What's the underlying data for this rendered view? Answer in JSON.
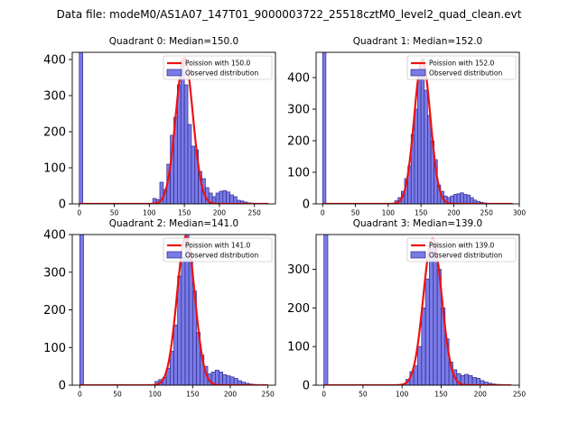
{
  "suptitle": "Data file: modeM0/AS1A07_147T01_9000003722_25518cztM0_level2_quad_clean.evt",
  "colors": {
    "bar_fill": "#7b7be8",
    "bar_edge": "#2a2a8c",
    "fit_line": "#ee1111",
    "axis": "#000000"
  },
  "chart_data": [
    {
      "type": "bar",
      "title": "Quadrant 0: Median=150.0",
      "xlim": [
        -10,
        280
      ],
      "ylim": [
        0,
        420
      ],
      "xticks": [
        0,
        50,
        100,
        150,
        200,
        250
      ],
      "yticks": [
        0,
        100,
        200,
        300,
        400
      ],
      "bin_width": 5,
      "bar_x": [
        0,
        105,
        110,
        115,
        120,
        125,
        130,
        135,
        140,
        145,
        150,
        155,
        160,
        165,
        170,
        175,
        180,
        185,
        190,
        195,
        200,
        205,
        210,
        215,
        220,
        225,
        230,
        235,
        240,
        245
      ],
      "bar_y": [
        420,
        15,
        12,
        60,
        40,
        110,
        190,
        240,
        330,
        400,
        330,
        220,
        160,
        150,
        90,
        70,
        45,
        30,
        20,
        30,
        35,
        37,
        33,
        25,
        20,
        10,
        8,
        5,
        3,
        2
      ],
      "fit_mean": 150.0,
      "fit_peak": 405,
      "fit_range": [
        0,
        270
      ],
      "legend": [
        "Poission with 150.0",
        "Observed distribution"
      ]
    },
    {
      "type": "bar",
      "title": "Quadrant 1: Median=152.0",
      "xlim": [
        -10,
        300
      ],
      "ylim": [
        0,
        480
      ],
      "xticks": [
        0,
        50,
        100,
        150,
        200,
        250,
        300
      ],
      "yticks": [
        0,
        100,
        200,
        300,
        400
      ],
      "bin_width": 5,
      "bar_x": [
        0,
        110,
        115,
        120,
        125,
        130,
        135,
        140,
        145,
        150,
        155,
        160,
        165,
        170,
        175,
        180,
        185,
        190,
        195,
        200,
        205,
        210,
        215,
        220,
        225,
        230,
        235,
        240,
        245,
        250
      ],
      "bar_y": [
        480,
        10,
        20,
        40,
        80,
        120,
        220,
        300,
        400,
        460,
        360,
        280,
        200,
        140,
        60,
        40,
        25,
        20,
        25,
        30,
        32,
        35,
        30,
        28,
        20,
        12,
        8,
        5,
        3,
        2
      ],
      "fit_mean": 152.0,
      "fit_peak": 455,
      "fit_range": [
        0,
        290
      ],
      "legend": [
        "Poission with 152.0",
        "Observed distribution"
      ]
    },
    {
      "type": "bar",
      "title": "Quadrant 2: Median=141.0",
      "xlim": [
        -10,
        260
      ],
      "ylim": [
        0,
        400
      ],
      "xticks": [
        0,
        50,
        100,
        150,
        200,
        250
      ],
      "yticks": [
        0,
        100,
        200,
        300,
        400
      ],
      "bin_width": 5,
      "bar_x": [
        0,
        100,
        105,
        110,
        115,
        120,
        125,
        130,
        135,
        140,
        145,
        150,
        155,
        160,
        165,
        170,
        175,
        180,
        185,
        190,
        195,
        200,
        205,
        210,
        215,
        220,
        225,
        230
      ],
      "bar_y": [
        400,
        10,
        15,
        20,
        45,
        90,
        160,
        290,
        340,
        400,
        340,
        250,
        140,
        80,
        50,
        30,
        35,
        40,
        35,
        28,
        25,
        22,
        18,
        12,
        8,
        5,
        3,
        2
      ],
      "fit_mean": 141.0,
      "fit_peak": 395,
      "fit_range": [
        0,
        250
      ],
      "legend": [
        "Poission with 141.0",
        "Observed distribution"
      ]
    },
    {
      "type": "bar",
      "title": "Quadrant 3: Median=139.0",
      "xlim": [
        -10,
        250
      ],
      "ylim": [
        0,
        390
      ],
      "xticks": [
        0,
        50,
        100,
        150,
        200,
        250
      ],
      "yticks": [
        0,
        100,
        200,
        300
      ],
      "bin_width": 5,
      "bar_x": [
        0,
        105,
        110,
        115,
        120,
        125,
        130,
        135,
        140,
        145,
        150,
        155,
        160,
        165,
        170,
        175,
        180,
        185,
        190,
        195,
        200,
        205,
        210,
        215,
        220
      ],
      "bar_y": [
        390,
        15,
        35,
        50,
        100,
        200,
        275,
        360,
        370,
        300,
        200,
        120,
        60,
        40,
        30,
        25,
        28,
        25,
        20,
        18,
        12,
        8,
        5,
        3,
        2
      ],
      "fit_mean": 139.0,
      "fit_peak": 380,
      "fit_range": [
        0,
        240
      ],
      "legend": [
        "Poission with 139.0",
        "Observed distribution"
      ]
    }
  ]
}
